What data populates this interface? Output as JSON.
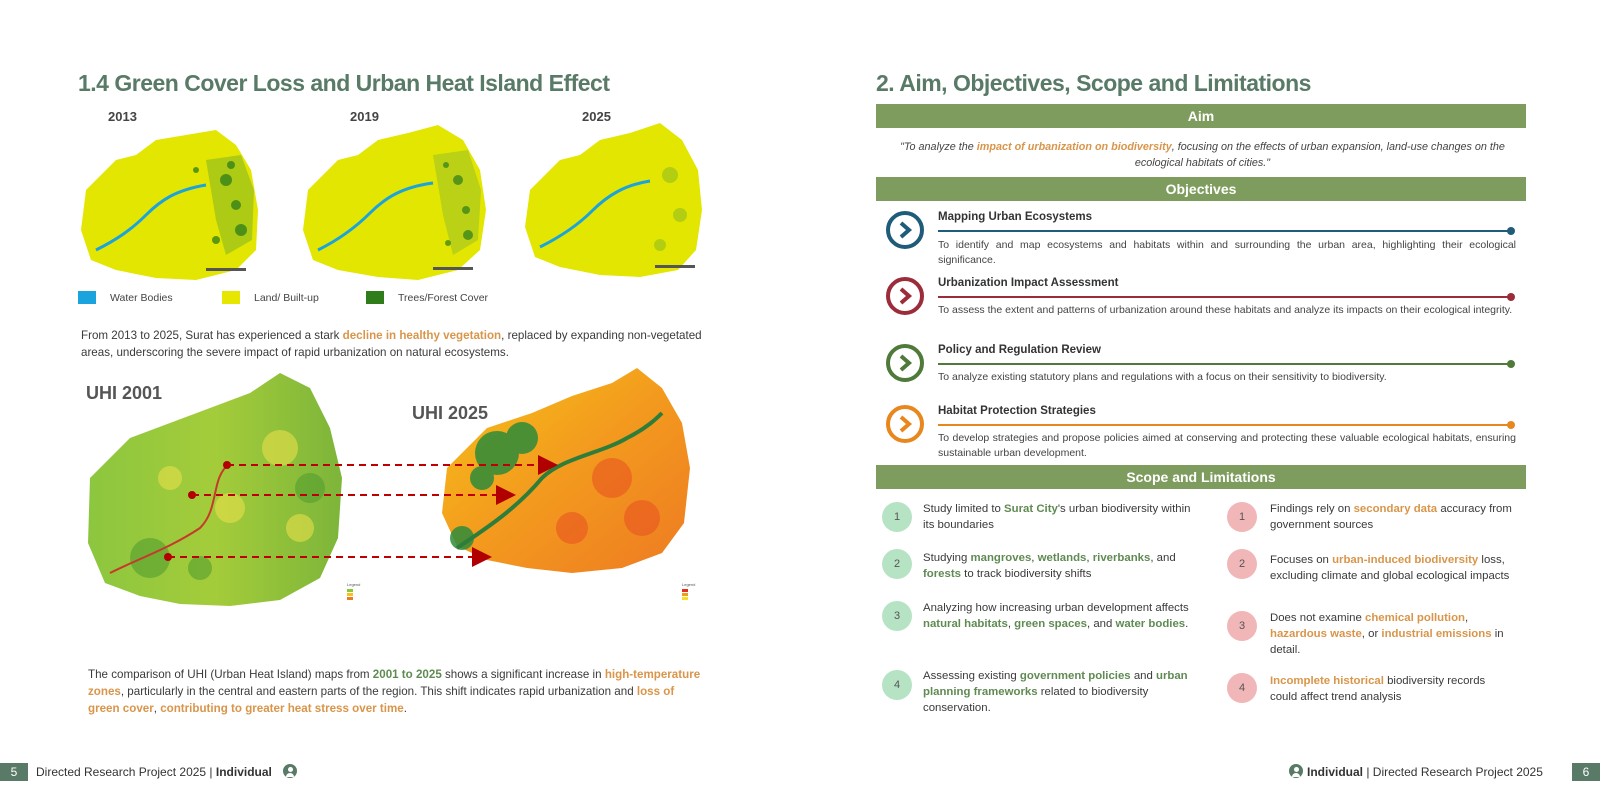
{
  "left": {
    "heading": "1.4 Green Cover Loss and Urban Heat Island Effect",
    "years": [
      "2013",
      "2019",
      "2025"
    ],
    "legend": [
      {
        "label": "Water Bodies",
        "color": "#1aa3dc"
      },
      {
        "label": "Land/ Built-up",
        "color": "#e6e600"
      },
      {
        "label": "Trees/Forest Cover",
        "color": "#2e7d1a"
      }
    ],
    "para1": {
      "pre": "From 2013 to 2025, Surat has experienced a stark ",
      "hl": "decline in healthy vegetation",
      "post": ", replaced by expanding non-vegetated areas, underscoring the severe impact of rapid urbanization on natural ecosystems."
    },
    "uhi_left": "UHI 2001",
    "uhi_right": "UHI 2025",
    "map_legend_title": "Legend",
    "para2": {
      "p1": "The comparison of UHI (Urban Heat Island) maps from ",
      "g1": "2001 to 2025",
      "p2": " shows a significant increase in ",
      "h1": "high-temperature zones",
      "p3": ", particularly in the central and eastern parts of the region. This shift indicates rapid urbanization and ",
      "h2": "loss of green cover",
      "p4": ", ",
      "h3": "contributing  to greater heat stress over time",
      "p5": "."
    }
  },
  "right": {
    "heading": "2. Aim, Objectives, Scope and Limitations",
    "aim_bar": "Aim",
    "aim": {
      "pre": "\"To analyze the ",
      "hl": "impact of urbanization  on biodiversity",
      "post": ",  focusing on the effects of urban expansion, land-use changes on the ecological habitats of cities.\""
    },
    "objectives_bar": "Objectives",
    "objectives": [
      {
        "title": "Mapping Urban Ecosystems",
        "desc": "To identify and map ecosystems and habitats within and surrounding the urban area, highlighting their ecological significance.",
        "color": "#1f5c7a"
      },
      {
        "title": "Urbanization Impact Assessment",
        "desc": "To assess the extent and patterns of urbanization around these habitats and analyze its impacts on their ecological integrity.",
        "color": "#9b2c3a"
      },
      {
        "title": "Policy and Regulation Review",
        "desc": "To analyze existing statutory plans and regulations with a focus on their sensitivity to biodiversity.",
        "color": "#4f7a3a"
      },
      {
        "title": "Habitat Protection Strategies",
        "desc": "To develop strategies and propose policies aimed at conserving and protecting these valuable ecological habitats, ensuring sustainable urban development.",
        "color": "#e8871e"
      }
    ],
    "scope_bar": "Scope and Limitations",
    "scope": [
      {
        "n": "1",
        "parts": [
          "Study limited to ",
          "Surat City",
          "'s urban biodiversity within its boundaries"
        ]
      },
      {
        "n": "2",
        "parts": [
          "Studying ",
          "mangroves",
          ", ",
          "wetlands",
          ", ",
          "riverbanks",
          ", and ",
          "forests",
          " to track biodiversity shifts"
        ]
      },
      {
        "n": "3",
        "parts": [
          "Analyzing how increasing urban development affects ",
          "natural habitats",
          ", ",
          "green spaces",
          ", and ",
          "water bodies",
          "."
        ]
      },
      {
        "n": "4",
        "parts": [
          "Assessing existing ",
          "government policies",
          " and ",
          "urban planning frameworks",
          " related to biodiversity conservation."
        ]
      }
    ],
    "limitations": [
      {
        "n": "1",
        "parts": [
          "Findings rely on ",
          "secondary data",
          " accuracy from government  sources"
        ]
      },
      {
        "n": "2",
        "parts": [
          "Focuses on ",
          "urban-induced biodiversity",
          " loss, excluding climate and global ecological impacts"
        ]
      },
      {
        "n": "3",
        "parts": [
          "Does not examine ",
          "chemical pollution",
          ", ",
          "hazardous waste",
          ", or ",
          "industrial emissions",
          " in detail."
        ]
      },
      {
        "n": "4",
        "parts": [
          "",
          "Incomplete historical",
          " biodiversity records could affect trend analysis"
        ]
      }
    ]
  },
  "footer": {
    "left_page": "5",
    "left_text": "Directed Research Project 2025 | ",
    "left_bold": "Individual",
    "right_bold": "Individual",
    "right_text": " | Directed Research Project 2025",
    "right_page": "6"
  }
}
